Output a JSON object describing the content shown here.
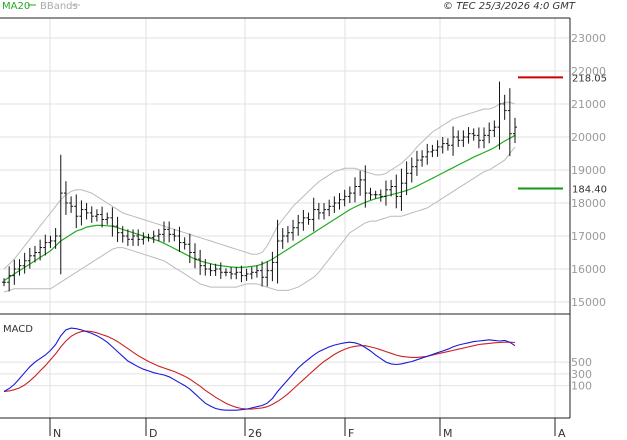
{
  "header": {
    "legend_ma": "MA20",
    "legend_bbands": "BBands",
    "source": "© TEC 25/3/2026 4:0 GMT"
  },
  "macd_label": "MACD",
  "colors": {
    "price_bar": "#111111",
    "ma20": "#22aa22",
    "bbands": "#bbbbbb",
    "resistance": "#cc0000",
    "support": "#119911",
    "macd": "#1a1adc",
    "signal": "#cc2222",
    "grid": "#e2e2e2",
    "frame": "#222222"
  },
  "chart_data": [
    {
      "type": "ohlc",
      "y_ticks": [
        "15000",
        "16000",
        "17000",
        "18000",
        "19000",
        "20000",
        "21000",
        "22000",
        "23000"
      ],
      "ylim": [
        15000,
        23000
      ],
      "x_ticks": [
        "N",
        "D",
        "26",
        "F",
        "M",
        "A"
      ],
      "levels": [
        {
          "label": "218.05",
          "value": 21805,
          "kind": "resistance"
        },
        {
          "label": "184.40",
          "value": 18440,
          "kind": "support"
        }
      ],
      "price": [
        15600,
        15800,
        16000,
        16100,
        16250,
        16400,
        16500,
        16650,
        16800,
        16850,
        17000,
        18300,
        18000,
        17900,
        17600,
        17800,
        17700,
        17600,
        17650,
        17500,
        17550,
        17300,
        17100,
        17000,
        16900,
        17000,
        16900,
        16950,
        16950,
        17000,
        17050,
        17200,
        17050,
        17000,
        16800,
        16750,
        16500,
        16300,
        16100,
        16000,
        15950,
        16000,
        15900,
        15900,
        15850,
        15900,
        15800,
        15850,
        15900,
        15950,
        15750,
        15950,
        16200,
        16850,
        17000,
        17100,
        17250,
        17400,
        17550,
        17500,
        17800,
        17700,
        17800,
        17900,
        18000,
        18100,
        18200,
        18300,
        18500,
        18700,
        18300,
        18250,
        18250,
        18200,
        18400,
        18500,
        18200,
        18600,
        18900,
        19100,
        19300,
        19400,
        19550,
        19600,
        19700,
        19800,
        19750,
        20000,
        19900,
        20000,
        20100,
        20050,
        19900,
        20050,
        20200,
        20300,
        21000,
        20800,
        20100,
        20300
      ],
      "ma20": [
        15650,
        15750,
        15850,
        15950,
        16050,
        16150,
        16250,
        16350,
        16450,
        16550,
        16700,
        16850,
        16950,
        17050,
        17150,
        17200,
        17270,
        17300,
        17320,
        17320,
        17310,
        17300,
        17250,
        17200,
        17150,
        17100,
        17050,
        17000,
        16950,
        16900,
        16850,
        16780,
        16700,
        16620,
        16540,
        16460,
        16380,
        16300,
        16250,
        16200,
        16160,
        16120,
        16100,
        16080,
        16060,
        16050,
        16050,
        16060,
        16080,
        16100,
        16150,
        16220,
        16300,
        16400,
        16500,
        16600,
        16700,
        16800,
        16900,
        17000,
        17100,
        17200,
        17300,
        17400,
        17500,
        17600,
        17700,
        17800,
        17880,
        17950,
        18020,
        18080,
        18130,
        18170,
        18210,
        18250,
        18290,
        18330,
        18380,
        18440,
        18510,
        18590,
        18670,
        18750,
        18830,
        18910,
        18990,
        19070,
        19150,
        19230,
        19310,
        19390,
        19460,
        19530,
        19600,
        19680,
        19780,
        19880,
        19960,
        20050
      ],
      "bb_upper": [
        16000,
        16150,
        16300,
        16500,
        16700,
        16900,
        17100,
        17300,
        17500,
        17700,
        17900,
        18100,
        18250,
        18350,
        18400,
        18400,
        18350,
        18300,
        18200,
        18100,
        18000,
        17900,
        17800,
        17700,
        17650,
        17600,
        17550,
        17500,
        17450,
        17400,
        17350,
        17300,
        17250,
        17200,
        17150,
        17100,
        17050,
        17000,
        16950,
        16900,
        16850,
        16800,
        16750,
        16700,
        16650,
        16600,
        16550,
        16500,
        16450,
        16450,
        16500,
        16700,
        17000,
        17300,
        17500,
        17700,
        17900,
        18050,
        18200,
        18350,
        18500,
        18650,
        18750,
        18850,
        18950,
        19000,
        19050,
        19050,
        19050,
        19000,
        18950,
        18900,
        18850,
        18850,
        18900,
        19000,
        19100,
        19200,
        19350,
        19500,
        19700,
        19850,
        20000,
        20150,
        20250,
        20350,
        20450,
        20550,
        20600,
        20650,
        20700,
        20750,
        20800,
        20850,
        20850,
        20900,
        21000,
        21050,
        21050,
        21000
      ],
      "bb_lower": [
        15300,
        15350,
        15400,
        15400,
        15400,
        15400,
        15400,
        15400,
        15400,
        15400,
        15500,
        15600,
        15700,
        15800,
        15900,
        16000,
        16100,
        16200,
        16300,
        16400,
        16500,
        16600,
        16650,
        16650,
        16600,
        16550,
        16500,
        16450,
        16400,
        16350,
        16300,
        16250,
        16150,
        16050,
        15950,
        15850,
        15750,
        15650,
        15550,
        15500,
        15450,
        15450,
        15450,
        15450,
        15450,
        15450,
        15500,
        15550,
        15550,
        15550,
        15500,
        15450,
        15400,
        15350,
        15350,
        15350,
        15400,
        15450,
        15550,
        15650,
        15750,
        15900,
        16100,
        16300,
        16500,
        16700,
        16900,
        17100,
        17200,
        17300,
        17400,
        17450,
        17450,
        17500,
        17550,
        17600,
        17600,
        17600,
        17650,
        17700,
        17750,
        17800,
        17850,
        17950,
        18050,
        18150,
        18250,
        18350,
        18450,
        18550,
        18650,
        18750,
        18850,
        18950,
        19000,
        19100,
        19200,
        19300,
        19500,
        19700
      ]
    },
    {
      "type": "line",
      "series": [
        {
          "name": "MACD",
          "values": [
            0,
            50,
            120,
            220,
            320,
            420,
            500,
            560,
            620,
            700,
            800,
            950,
            1050,
            1080,
            1070,
            1050,
            1020,
            990,
            950,
            900,
            840,
            760,
            680,
            600,
            520,
            470,
            420,
            380,
            350,
            320,
            300,
            280,
            250,
            200,
            150,
            100,
            40,
            -40,
            -120,
            -200,
            -250,
            -290,
            -310,
            -320,
            -320,
            -320,
            -310,
            -300,
            -280,
            -260,
            -240,
            -200,
            -120,
            0,
            100,
            200,
            300,
            400,
            480,
            550,
            620,
            680,
            720,
            760,
            790,
            810,
            830,
            840,
            830,
            800,
            750,
            690,
            620,
            560,
            500,
            470,
            460,
            470,
            490,
            510,
            540,
            570,
            600,
            630,
            660,
            690,
            720,
            760,
            790,
            810,
            830,
            850,
            860,
            870,
            880,
            870,
            860,
            870,
            840,
            780
          ]
        },
        {
          "name": "Signal",
          "values": [
            0,
            10,
            30,
            60,
            110,
            180,
            260,
            350,
            440,
            540,
            640,
            760,
            860,
            940,
            990,
            1020,
            1030,
            1020,
            1000,
            970,
            940,
            900,
            850,
            790,
            730,
            670,
            610,
            560,
            510,
            470,
            430,
            400,
            370,
            340,
            300,
            260,
            210,
            150,
            90,
            20,
            -40,
            -100,
            -150,
            -200,
            -240,
            -270,
            -290,
            -300,
            -300,
            -290,
            -280,
            -260,
            -220,
            -170,
            -110,
            -40,
            40,
            120,
            200,
            280,
            360,
            440,
            510,
            570,
            630,
            680,
            720,
            750,
            770,
            780,
            780,
            760,
            740,
            710,
            680,
            650,
            620,
            600,
            590,
            580,
            580,
            590,
            600,
            620,
            640,
            660,
            680,
            700,
            720,
            740,
            760,
            780,
            800,
            810,
            820,
            830,
            835,
            840,
            840,
            835
          ]
        }
      ],
      "y_ticks": [
        "100",
        "300",
        "500"
      ],
      "ylim": [
        -350,
        1150
      ]
    }
  ]
}
